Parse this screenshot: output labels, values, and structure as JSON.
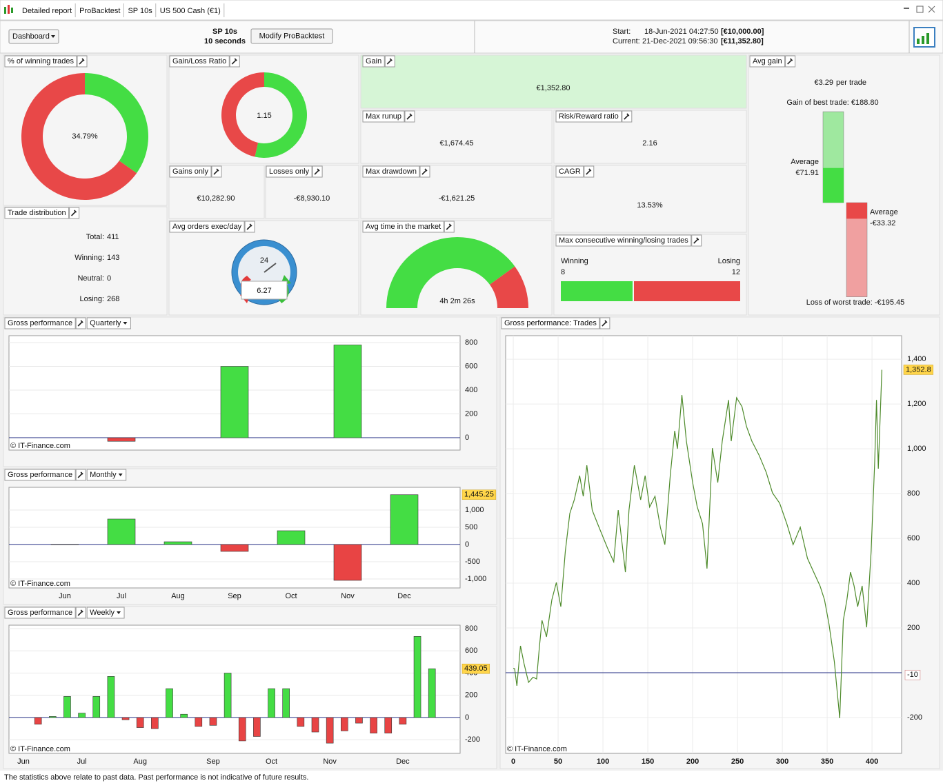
{
  "tabs": [
    "Detailed report",
    "ProBacktest",
    "SP 10s",
    "US 500 Cash (€1)"
  ],
  "header": {
    "dashboard_button": "Dashboard",
    "system_name": "SP 10s",
    "system_period": "10 seconds",
    "modify_button": "Modify ProBacktest",
    "start_label": "Start:",
    "start_value": "18-Jun-2021 04:27:50",
    "start_capital": "[€10,000.00]",
    "current_label": "Current:",
    "current_value": "21-Dec-2021 09:56:30",
    "current_capital": "[€11,352.80]"
  },
  "panels": {
    "win_rate": {
      "title": "% of winning trades",
      "value": 34.79,
      "value_label": "34.79%"
    },
    "gain_loss_ratio": {
      "title": "Gain/Loss Ratio",
      "value": "1.15",
      "gains_share": 53.5
    },
    "gain": {
      "title": "Gain",
      "value": "€1,352.80"
    },
    "max_runup": {
      "title": "Max runup",
      "value": "€1,674.45"
    },
    "risk_reward": {
      "title": "Risk/Reward ratio",
      "value": "2.16"
    },
    "gains_only": {
      "title": "Gains only",
      "value": "€10,282.90"
    },
    "losses_only": {
      "title": "Losses only",
      "value": "-€8,930.10"
    },
    "max_drawdown": {
      "title": "Max drawdown",
      "value": "-€1,621.25"
    },
    "cagr": {
      "title": "CAGR",
      "value": "13.53%"
    },
    "trade_distribution": {
      "title": "Trade distribution",
      "rows": [
        {
          "label": "Total:",
          "value": 411
        },
        {
          "label": "Winning:",
          "value": 143
        },
        {
          "label": "Neutral:",
          "value": 0
        },
        {
          "label": "Losing:",
          "value": 268
        }
      ]
    },
    "avg_orders": {
      "title": "Avg orders exec/day",
      "dial": 24,
      "value": "6.27"
    },
    "avg_time": {
      "title": "Avg time in the market",
      "value": "4h 2m 26s",
      "share": 80
    },
    "max_consecutive": {
      "title": "Max consecutive winning/losing trades",
      "winning_label": "Winning",
      "winning": 8,
      "losing_label": "Losing",
      "losing": 12
    },
    "avg_gain": {
      "title": "Avg gain",
      "value": "€3.29",
      "unit": "per trade",
      "best_label": "Gain of best trade: €188.80",
      "best": 188.8,
      "avg_gain_label": "Average",
      "avg_gain_text": "€71.91",
      "avg_gain": 71.91,
      "avg_loss_label": "Average",
      "avg_loss_text": "-€33.32",
      "avg_loss": -33.32,
      "worst_label": "Loss of worst trade: -€195.45",
      "worst": -195.45
    }
  },
  "chart_data": [
    {
      "type": "bar",
      "title": "Gross performance",
      "period": "Quarterly",
      "watermark": "© IT-Finance.com",
      "categories": [
        null,
        null,
        null
      ],
      "values": [
        -30,
        600,
        780
      ],
      "color": "#44dd44",
      "negative_color": "#e84444",
      "ylim": [
        -104,
        858
      ],
      "yticks": [
        0,
        200,
        400,
        600,
        800
      ],
      "grid": true
    },
    {
      "type": "bar",
      "title": "Gross performance",
      "period": "Monthly",
      "watermark": "© IT-Finance.com",
      "categories": [
        "Jun",
        "Jul",
        "Aug",
        "Sep",
        "Oct",
        "Nov",
        "Dec"
      ],
      "values": [
        -10,
        740,
        80,
        -200,
        400,
        -1040,
        1445.25
      ],
      "last_label": "1,445.25",
      "color": "#44dd44",
      "negative_color": "#e84444",
      "ylim": [
        -1260,
        1660
      ],
      "yticks": [
        {
          "value": -1000,
          "label": "-1,000"
        },
        -500,
        0,
        500,
        {
          "value": 1000,
          "label": "1,000"
        }
      ],
      "grid": true
    },
    {
      "type": "bar",
      "title": "Gross performance",
      "period": "Weekly",
      "watermark": "© IT-Finance.com",
      "categories": [
        "Jun",
        null,
        null,
        null,
        "Jul",
        null,
        null,
        null,
        "Aug",
        null,
        null,
        null,
        null,
        "Sep",
        null,
        null,
        null,
        "Oct",
        null,
        null,
        null,
        "Nov",
        null,
        null,
        null,
        null,
        "Dec",
        null,
        null
      ],
      "values": [
        null,
        -60,
        10,
        190,
        40,
        190,
        370,
        -20,
        -90,
        -100,
        260,
        30,
        -80,
        -70,
        400,
        -210,
        -170,
        260,
        260,
        -80,
        -130,
        -230,
        -120,
        -50,
        -140,
        -140,
        -60,
        730,
        439.05
      ],
      "last_label": "439.05",
      "color": "#44dd44",
      "negative_color": "#e84444",
      "ylim": [
        -322,
        831
      ],
      "yticks": [
        -200,
        0,
        200,
        400,
        600,
        800
      ],
      "grid": true
    },
    {
      "type": "line",
      "title": "Gross performance: Trades",
      "watermark": "© IT-Finance.com",
      "color": "#4d8a2a",
      "x": [
        0,
        1.5,
        4,
        8,
        12,
        17,
        22,
        26,
        29,
        32,
        37,
        43,
        48,
        53,
        58,
        63,
        68,
        74,
        78,
        82,
        88,
        94,
        105,
        112,
        117,
        125,
        129,
        135,
        142,
        147,
        152,
        158,
        164,
        169,
        175,
        180,
        183,
        188,
        193,
        200,
        205,
        211,
        216,
        222,
        228,
        233,
        240,
        243,
        249,
        255,
        260,
        266,
        274,
        282,
        289,
        297,
        305,
        312,
        320,
        328,
        335,
        342,
        347,
        352,
        358,
        364,
        368,
        372,
        376,
        380,
        384,
        389,
        394,
        399,
        403,
        405,
        407,
        411
      ],
      "y": [
        20,
        18,
        -58,
        120,
        40,
        -43,
        -20,
        -28,
        111,
        234,
        160,
        326,
        403,
        295,
        542,
        711,
        772,
        880,
        788,
        926,
        726,
        665,
        557,
        495,
        726,
        449,
        726,
        926,
        772,
        880,
        740,
        788,
        649,
        572,
        880,
        1080,
        1000,
        1240,
        1034,
        849,
        742,
        665,
        465,
        1003,
        849,
        1034,
        1218,
        1034,
        1228,
        1188,
        1100,
        1034,
        972,
        895,
        803,
        757,
        665,
        572,
        650,
        511,
        449,
        388,
        326,
        218,
        49,
        -203,
        234,
        326,
        449,
        388,
        295,
        388,
        203,
        542,
        942,
        1218,
        911,
        1352.8
      ],
      "last_label": "1,352.8",
      "marker": -10,
      "xlim": [
        -8.5,
        433
      ],
      "xticks": [
        0,
        50,
        100,
        150,
        200,
        250,
        300,
        350,
        400
      ],
      "ylim": [
        -360,
        1505
      ],
      "yticks": [
        -200,
        200,
        400,
        600,
        800,
        {
          "value": 1000,
          "label": "1,000"
        },
        {
          "value": 1200,
          "label": "1,200"
        },
        {
          "value": 1400,
          "label": "1,400"
        }
      ],
      "grid": true
    }
  ],
  "footer": "The statistics above relate to past data. Past performance is not indicative of future results."
}
